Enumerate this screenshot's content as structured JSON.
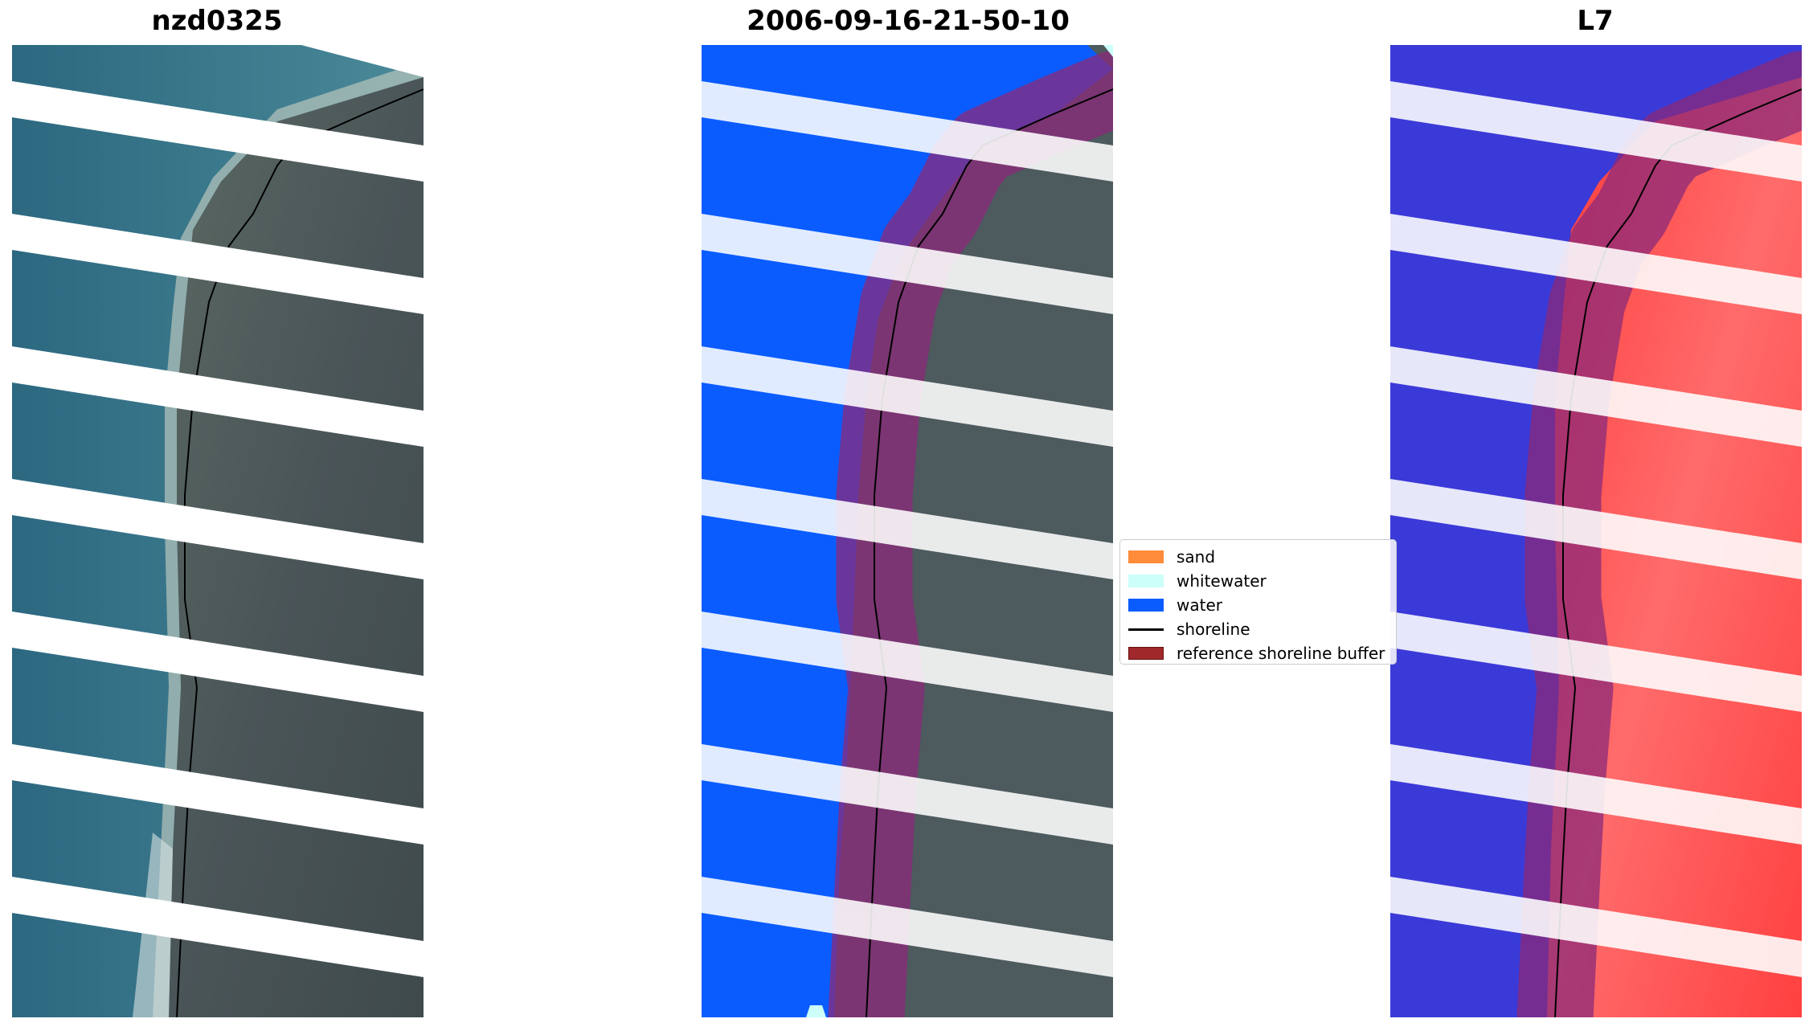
{
  "panels": [
    {
      "title": "nzd0325",
      "kind": "rgb-image"
    },
    {
      "title": "2006-09-16-21-50-10",
      "kind": "classified-image"
    },
    {
      "title": "L7",
      "kind": "water-index-image"
    }
  ],
  "legend": {
    "items": [
      {
        "label": "sand",
        "color": "#ff8c3a",
        "type": "patch"
      },
      {
        "label": "whitewater",
        "color": "#ccfff9",
        "type": "patch"
      },
      {
        "label": "water",
        "color": "#0a5cff",
        "type": "patch"
      },
      {
        "label": "shoreline",
        "color": "#000000",
        "type": "line"
      },
      {
        "label": "reference shoreline buffer",
        "color": "#a0282b",
        "type": "patch"
      }
    ]
  },
  "colors": {
    "sea": "#2f6f86",
    "land": "#4d5a5e",
    "water_class": "#0a5cff",
    "buffer": "#8b2a7a",
    "index_water": "#3a3ad8",
    "index_land": "#ff4a4a",
    "stripe_gap": "#ffffff"
  }
}
